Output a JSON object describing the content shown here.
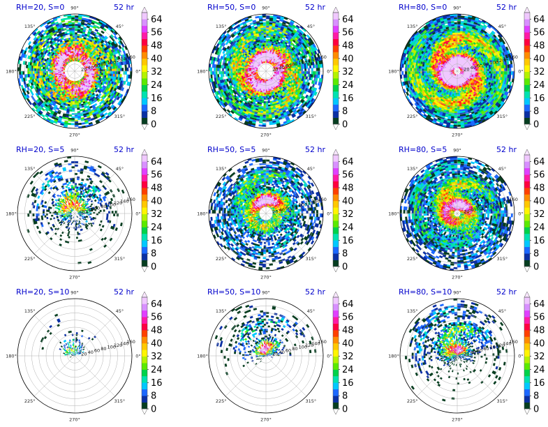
{
  "figure": {
    "colorbar": {
      "levels": [
        0,
        4,
        8,
        12,
        16,
        20,
        24,
        28,
        32,
        36,
        40,
        44,
        48,
        52,
        56,
        60,
        64,
        68
      ],
      "tick_labels": [
        "0",
        "8",
        "16",
        "24",
        "32",
        "40",
        "48",
        "56",
        "64"
      ],
      "colors": [
        "#063d20",
        "#0a2fa3",
        "#1c68ff",
        "#00c8ff",
        "#00e2b0",
        "#00d24a",
        "#5bea00",
        "#b4f200",
        "#fff500",
        "#ffc800",
        "#ff8c00",
        "#ff4000",
        "#ff0040",
        "#ff1aa6",
        "#e040ff",
        "#d890ff",
        "#f0c8ff"
      ]
    },
    "angle_labels": [
      "0°",
      "45°",
      "90°",
      "135°",
      "180°",
      "225°",
      "270°",
      "315°"
    ],
    "radial_labels": [
      "20",
      "40",
      "60",
      "80",
      "100",
      "120",
      "140",
      "160"
    ]
  },
  "chart_data": [
    {
      "type": "heatmap",
      "projection": "polar",
      "title_left": "RH=20, S=0",
      "title_right": "52 hr",
      "field": "rainfall",
      "pattern": {
        "inner_hole": 0.18,
        "asym": 0.0,
        "coverage": 0.9,
        "intensity": 0.55,
        "cells": 0.75
      }
    },
    {
      "type": "heatmap",
      "projection": "polar",
      "title_left": "RH=50, S=0",
      "title_right": "52 hr",
      "field": "rainfall",
      "pattern": {
        "inner_hole": 0.14,
        "asym": 0.0,
        "coverage": 0.95,
        "intensity": 0.6,
        "cells": 0.55
      }
    },
    {
      "type": "heatmap",
      "projection": "polar",
      "title_left": "RH=80, S=0",
      "title_right": "52 hr",
      "field": "rainfall",
      "pattern": {
        "inner_hole": 0.06,
        "asym": 0.0,
        "coverage": 1.0,
        "intensity": 0.72,
        "cells": 0.35
      }
    },
    {
      "type": "heatmap",
      "projection": "polar",
      "title_left": "RH=20, S=5",
      "title_right": "52 hr",
      "field": "rainfall",
      "pattern": {
        "inner_hole": 0.05,
        "asym": 0.8,
        "coverage": 0.55,
        "intensity": 0.55,
        "cells": 0.55
      }
    },
    {
      "type": "heatmap",
      "projection": "polar",
      "title_left": "RH=50, S=5",
      "title_right": "52 hr",
      "field": "rainfall",
      "pattern": {
        "inner_hole": 0.12,
        "asym": 0.55,
        "coverage": 0.8,
        "intensity": 0.6,
        "cells": 0.45
      }
    },
    {
      "type": "heatmap",
      "projection": "polar",
      "title_left": "RH=80, S=5",
      "title_right": "52 hr",
      "field": "rainfall",
      "pattern": {
        "inner_hole": 0.06,
        "asym": 0.45,
        "coverage": 0.88,
        "intensity": 0.65,
        "cells": 0.4
      }
    },
    {
      "type": "heatmap",
      "projection": "polar",
      "title_left": "RH=20, S=10",
      "title_right": "52 hr",
      "field": "rainfall",
      "pattern": {
        "inner_hole": 0.0,
        "asym": 1.0,
        "coverage": 0.22,
        "intensity": 0.45,
        "cells": 0.75
      }
    },
    {
      "type": "heatmap",
      "projection": "polar",
      "title_left": "RH=50, S=10",
      "title_right": "52 hr",
      "field": "rainfall",
      "pattern": {
        "inner_hole": 0.0,
        "asym": 1.0,
        "coverage": 0.45,
        "intensity": 0.62,
        "cells": 0.55
      }
    },
    {
      "type": "heatmap",
      "projection": "polar",
      "title_left": "RH=80, S=10",
      "title_right": "52 hr",
      "field": "rainfall",
      "pattern": {
        "inner_hole": 0.0,
        "asym": 0.95,
        "coverage": 0.6,
        "intensity": 0.66,
        "cells": 0.45
      }
    }
  ]
}
